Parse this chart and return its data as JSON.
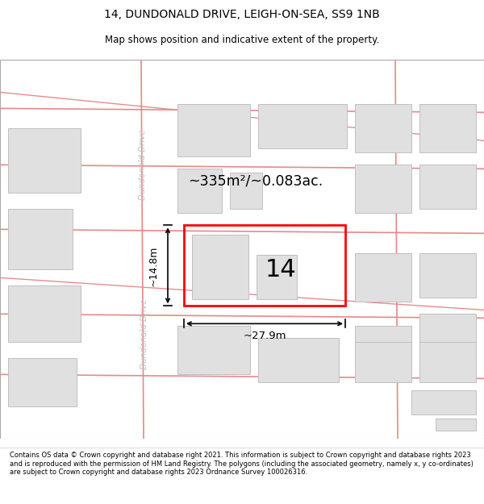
{
  "title_line1": "14, DUNDONALD DRIVE, LEIGH-ON-SEA, SS9 1NB",
  "title_line2": "Map shows position and indicative extent of the property.",
  "footer_text": "Contains OS data © Crown copyright and database right 2021. This information is subject to Crown copyright and database rights 2023 and is reproduced with the permission of HM Land Registry. The polygons (including the associated geometry, namely x, y co-ordinates) are subject to Crown copyright and database rights 2023 Ordnance Survey 100026316.",
  "map_bg": "#f2f2f2",
  "road_color": "#f0a0a0",
  "road_line_color": "#e88888",
  "building_fill": "#e0e0e0",
  "building_edge": "#c0c0c0",
  "highlight_color": "#ff0000",
  "street_label_color": "#c0c0c0",
  "area_text": "~335m²/~0.083ac.",
  "property_label": "14",
  "width_label": "~27.9m",
  "height_label": "~14.8m",
  "title_fontsize": 10,
  "subtitle_fontsize": 8.5,
  "footer_fontsize": 6.0
}
